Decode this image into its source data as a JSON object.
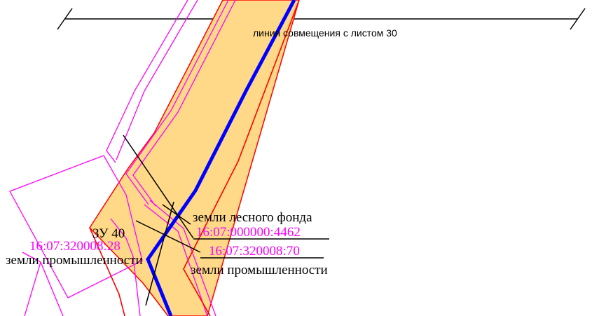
{
  "colors": {
    "parcel_fill": "#ffd987",
    "parcel_outline": "#ff0000",
    "boundary_line": "#ff00ff",
    "road_line": "#0000ff",
    "leader_line": "#000000",
    "background": "#ffffff"
  },
  "labels": {
    "match_line": "линия совмещения с листом 30",
    "zu": "ЗУ 40",
    "forest_land": "земли лесного фонда",
    "cadastral_4462": "16:07:000000:4462",
    "cadastral_70": "16:07:320008:70",
    "cadastral_28": "16:07:320008:28",
    "industrial_land_left": "земли промышленности",
    "industrial_land_right": "земли промышленности"
  }
}
